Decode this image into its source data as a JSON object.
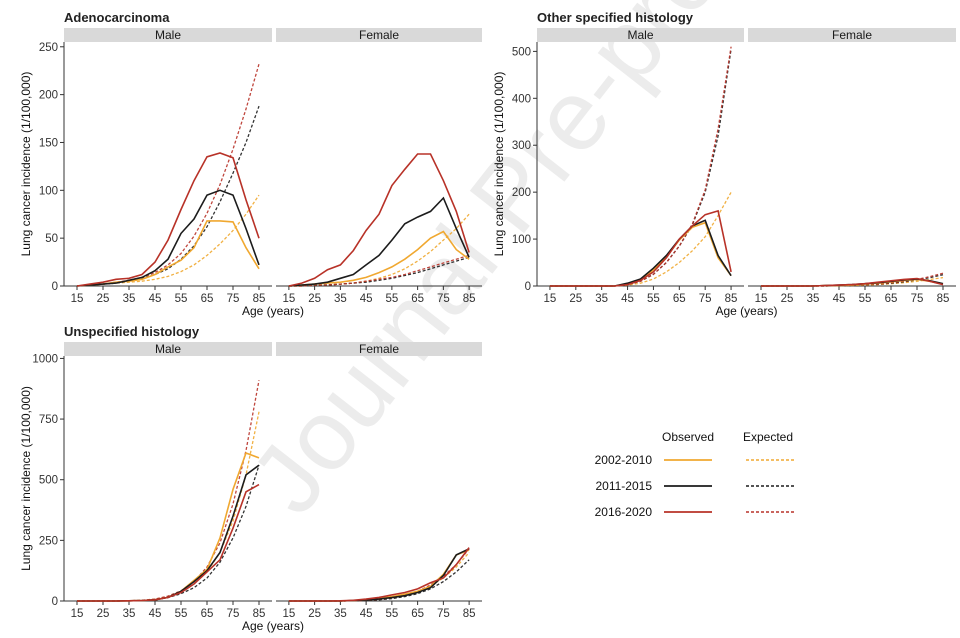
{
  "watermark": "Journal Pre-proof",
  "legend": {
    "observed_label": "Observed",
    "expected_label": "Expected",
    "entries": [
      {
        "label": "2002-2010",
        "color": "#f0a830"
      },
      {
        "label": "2011-2015",
        "color": "#1c1c1c"
      },
      {
        "label": "2016-2020",
        "color": "#b83228"
      }
    ]
  },
  "chart_data": [
    {
      "type": "line",
      "title": "Adenocarcinoma",
      "ylabel": "Lung cancer incidence (1/100,000)",
      "xlabel": "Age (years)",
      "x": [
        15,
        20,
        25,
        30,
        35,
        40,
        45,
        50,
        55,
        60,
        65,
        70,
        75,
        80,
        85
      ],
      "xticks": [
        15,
        25,
        35,
        45,
        55,
        65,
        75,
        85
      ],
      "yticks": [
        0,
        50,
        100,
        150,
        200,
        250
      ],
      "ylim": [
        0,
        255
      ],
      "facets": [
        {
          "label": "Male",
          "observed": [
            {
              "period": "2002-2010",
              "values": [
                0,
                1,
                2,
                4,
                5,
                7,
                12,
                20,
                27,
                40,
                68,
                68,
                67,
                40,
                18
              ]
            },
            {
              "period": "2011-2015",
              "values": [
                0,
                1,
                2,
                3,
                6,
                9,
                16,
                28,
                55,
                70,
                95,
                100,
                95,
                60,
                22
              ]
            },
            {
              "period": "2016-2020",
              "values": [
                0,
                2,
                4,
                7,
                8,
                12,
                25,
                48,
                80,
                110,
                135,
                139,
                134,
                90,
                50
              ]
            }
          ],
          "expected": [
            {
              "period": "2002-2010",
              "values": [
                0,
                1,
                2,
                3,
                4,
                5,
                7,
                10,
                15,
                22,
                32,
                44,
                58,
                75,
                95
              ]
            },
            {
              "period": "2011-2015",
              "values": [
                0,
                1,
                2,
                3,
                5,
                8,
                12,
                18,
                28,
                42,
                62,
                88,
                118,
                150,
                188
              ]
            },
            {
              "period": "2016-2020",
              "values": [
                0,
                1,
                2,
                4,
                6,
                9,
                14,
                22,
                34,
                52,
                76,
                106,
                143,
                185,
                232
              ]
            }
          ]
        },
        {
          "label": "Female",
          "observed": [
            {
              "period": "2002-2010",
              "values": [
                0,
                1,
                2,
                3,
                4,
                6,
                9,
                14,
                20,
                28,
                38,
                50,
                57,
                38,
                28
              ]
            },
            {
              "period": "2011-2015",
              "values": [
                0,
                1,
                2,
                4,
                8,
                12,
                22,
                32,
                48,
                65,
                72,
                78,
                92,
                60,
                30
              ]
            },
            {
              "period": "2016-2020",
              "values": [
                0,
                3,
                8,
                17,
                22,
                37,
                58,
                75,
                105,
                122,
                138,
                138,
                110,
                78,
                35
              ]
            }
          ],
          "expected": [
            {
              "period": "2002-2010",
              "values": [
                0,
                0,
                1,
                1,
                2,
                3,
                5,
                8,
                12,
                18,
                26,
                36,
                48,
                60,
                75
              ]
            },
            {
              "period": "2011-2015",
              "values": [
                0,
                0,
                1,
                1,
                2,
                3,
                4,
                6,
                8,
                11,
                14,
                18,
                22,
                26,
                30
              ]
            },
            {
              "period": "2016-2020",
              "values": [
                0,
                0,
                1,
                1,
                2,
                3,
                5,
                7,
                9,
                12,
                16,
                20,
                24,
                28,
                32
              ]
            }
          ]
        }
      ]
    },
    {
      "type": "line",
      "title": "Other specified histology",
      "ylabel": "Lung cancer incidence (1/100,000)",
      "xlabel": "Age (years)",
      "x": [
        15,
        20,
        25,
        30,
        35,
        40,
        45,
        50,
        55,
        60,
        65,
        70,
        75,
        80,
        85
      ],
      "xticks": [
        15,
        25,
        35,
        45,
        55,
        65,
        75,
        85
      ],
      "yticks": [
        0,
        100,
        200,
        300,
        400,
        500
      ],
      "ylim": [
        0,
        520
      ],
      "facets": [
        {
          "label": "Male",
          "observed": [
            {
              "period": "2002-2010",
              "values": [
                0,
                0,
                0,
                0,
                0,
                0,
                5,
                12,
                35,
                62,
                98,
                125,
                135,
                60,
                22
              ]
            },
            {
              "period": "2011-2015",
              "values": [
                0,
                0,
                0,
                0,
                0,
                0,
                6,
                15,
                38,
                65,
                100,
                128,
                140,
                65,
                22
              ]
            },
            {
              "period": "2016-2020",
              "values": [
                0,
                0,
                0,
                0,
                0,
                0,
                3,
                12,
                30,
                60,
                100,
                128,
                152,
                160,
                30
              ]
            }
          ],
          "expected": [
            {
              "period": "2002-2010",
              "values": [
                0,
                0,
                0,
                0,
                0,
                0,
                2,
                6,
                15,
                30,
                50,
                75,
                105,
                150,
                200
              ]
            },
            {
              "period": "2011-2015",
              "values": [
                0,
                0,
                0,
                0,
                0,
                0,
                3,
                10,
                25,
                50,
                85,
                130,
                200,
                320,
                505
              ]
            },
            {
              "period": "2016-2020",
              "values": [
                0,
                0,
                0,
                0,
                0,
                0,
                3,
                10,
                25,
                50,
                85,
                132,
                205,
                335,
                510
              ]
            }
          ]
        },
        {
          "label": "Female",
          "observed": [
            {
              "period": "2002-2010",
              "values": [
                0,
                0,
                0,
                0,
                0,
                1,
                1,
                2,
                4,
                6,
                9,
                12,
                14,
                10,
                4
              ]
            },
            {
              "period": "2011-2015",
              "values": [
                0,
                0,
                0,
                0,
                0,
                1,
                2,
                3,
                5,
                7,
                10,
                13,
                15,
                11,
                5
              ]
            },
            {
              "period": "2016-2020",
              "values": [
                0,
                0,
                0,
                0,
                0,
                1,
                2,
                3,
                5,
                8,
                11,
                14,
                16,
                10,
                3
              ]
            }
          ],
          "expected": [
            {
              "period": "2002-2010",
              "values": [
                0,
                0,
                0,
                0,
                0,
                0,
                1,
                1,
                2,
                3,
                5,
                7,
                10,
                14,
                18
              ]
            },
            {
              "period": "2011-2015",
              "values": [
                0,
                0,
                0,
                0,
                0,
                0,
                1,
                2,
                3,
                4,
                6,
                9,
                13,
                18,
                24
              ]
            },
            {
              "period": "2016-2020",
              "values": [
                0,
                0,
                0,
                0,
                0,
                0,
                1,
                2,
                3,
                4,
                7,
                10,
                14,
                20,
                27
              ]
            }
          ]
        }
      ]
    },
    {
      "type": "line",
      "title": "Unspecified histology",
      "ylabel": "Lung cancer incidence (1/100,000)",
      "xlabel": "Age (years)",
      "x": [
        15,
        20,
        25,
        30,
        35,
        40,
        45,
        50,
        55,
        60,
        65,
        70,
        75,
        80,
        85
      ],
      "xticks": [
        15,
        25,
        35,
        45,
        55,
        65,
        75,
        85
      ],
      "yticks": [
        0,
        250,
        500,
        750,
        1000
      ],
      "ylim": [
        0,
        1010
      ],
      "facets": [
        {
          "label": "Male",
          "observed": [
            {
              "period": "2002-2010",
              "values": [
                0,
                0,
                0,
                0,
                1,
                2,
                5,
                15,
                40,
                85,
                130,
                260,
                460,
                610,
                590
              ]
            },
            {
              "period": "2011-2015",
              "values": [
                0,
                0,
                0,
                0,
                1,
                2,
                5,
                15,
                40,
                80,
                125,
                200,
                350,
                520,
                560
              ]
            },
            {
              "period": "2016-2020",
              "values": [
                0,
                0,
                0,
                0,
                1,
                2,
                5,
                15,
                35,
                70,
                120,
                170,
                300,
                450,
                480
              ]
            }
          ],
          "expected": [
            {
              "period": "2002-2010",
              "values": [
                0,
                0,
                0,
                0,
                1,
                3,
                8,
                18,
                38,
                70,
                120,
                200,
                330,
                520,
                780
              ]
            },
            {
              "period": "2011-2015",
              "values": [
                0,
                0,
                0,
                0,
                1,
                2,
                6,
                14,
                30,
                55,
                95,
                160,
                260,
                390,
                560
              ]
            },
            {
              "period": "2016-2020",
              "values": [
                0,
                0,
                0,
                0,
                1,
                3,
                8,
                20,
                42,
                80,
                140,
                240,
                400,
                620,
                910
              ]
            }
          ]
        },
        {
          "label": "Female",
          "observed": [
            {
              "period": "2002-2010",
              "values": [
                0,
                0,
                0,
                0,
                0,
                2,
                5,
                10,
                18,
                28,
                40,
                60,
                110,
                190,
                210
              ]
            },
            {
              "period": "2011-2015",
              "values": [
                0,
                0,
                0,
                0,
                0,
                2,
                4,
                8,
                14,
                22,
                35,
                55,
                105,
                190,
                215
              ]
            },
            {
              "period": "2016-2020",
              "values": [
                0,
                0,
                0,
                0,
                1,
                3,
                8,
                15,
                25,
                35,
                50,
                75,
                95,
                150,
                220
              ]
            }
          ],
          "expected": [
            {
              "period": "2002-2010",
              "values": [
                0,
                0,
                0,
                0,
                0,
                1,
                3,
                6,
                12,
                22,
                38,
                62,
                95,
                140,
                200
              ]
            },
            {
              "period": "2011-2015",
              "values": [
                0,
                0,
                0,
                0,
                0,
                1,
                2,
                5,
                10,
                18,
                30,
                50,
                80,
                120,
                170
              ]
            },
            {
              "period": "2016-2020",
              "values": [
                0,
                0,
                0,
                0,
                0,
                1,
                3,
                7,
                13,
                24,
                40,
                66,
                102,
                150,
                215
              ]
            }
          ]
        }
      ]
    }
  ]
}
